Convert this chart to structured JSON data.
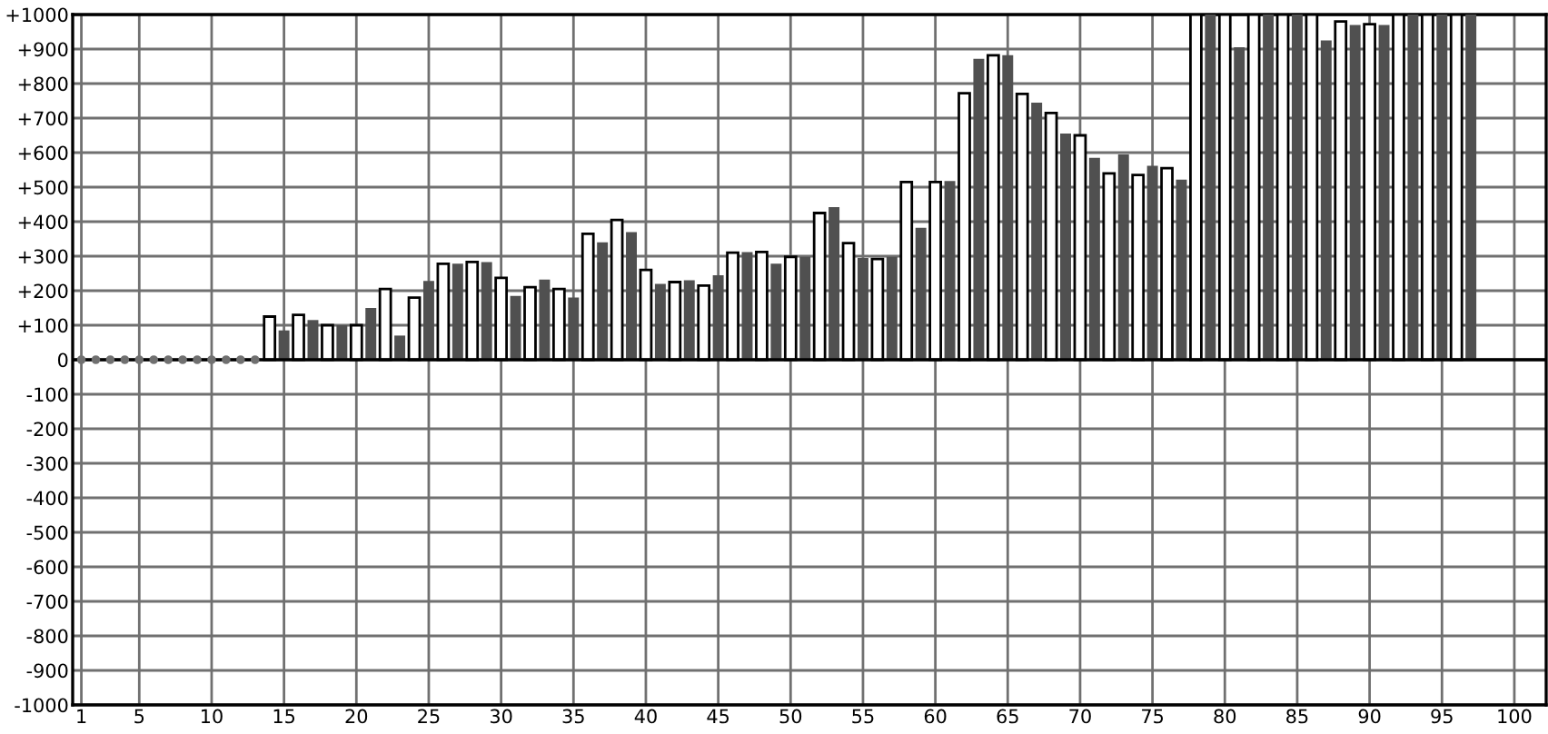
{
  "chart_data": {
    "type": "bar",
    "series": [
      {
        "color": "#ffffff",
        "x": [
          14,
          16,
          18,
          20,
          22,
          24,
          26,
          28,
          30,
          32,
          34,
          36,
          38,
          40,
          42,
          44,
          46,
          48,
          50,
          52,
          54,
          56,
          58,
          60,
          62,
          64,
          66,
          68,
          70,
          72,
          74,
          76,
          78,
          80,
          82,
          84,
          86,
          88,
          90,
          92,
          94,
          96
        ],
        "values": [
          125,
          130,
          100,
          100,
          205,
          180,
          278,
          283,
          237,
          210,
          205,
          365,
          405,
          260,
          225,
          215,
          310,
          312,
          298,
          425,
          338,
          292,
          515,
          515,
          772,
          882,
          770,
          715,
          650,
          540,
          535,
          555,
          1000,
          1000,
          1000,
          1000,
          1000,
          980,
          972,
          1000,
          1000,
          1000
        ]
      },
      {
        "color": "#505050",
        "x": [
          15,
          17,
          19,
          21,
          23,
          25,
          27,
          29,
          31,
          33,
          35,
          37,
          39,
          41,
          43,
          45,
          47,
          49,
          51,
          53,
          55,
          57,
          59,
          61,
          63,
          65,
          67,
          69,
          71,
          73,
          75,
          77,
          79,
          81,
          83,
          85,
          87,
          89,
          91,
          93,
          95,
          97
        ],
        "values": [
          85,
          115,
          100,
          150,
          70,
          228,
          278,
          283,
          185,
          232,
          180,
          340,
          370,
          220,
          230,
          245,
          312,
          278,
          298,
          442,
          295,
          298,
          382,
          518,
          872,
          882,
          745,
          655,
          585,
          595,
          562,
          522,
          1000,
          905,
          1000,
          1000,
          925,
          970,
          970,
          1000,
          1000,
          1000
        ]
      },
      {
        "type": "scatter",
        "color": "#707070",
        "x": [
          1,
          2,
          3,
          4,
          5,
          6,
          7,
          8,
          9,
          10,
          11,
          12,
          13
        ],
        "values": [
          0,
          0,
          0,
          0,
          0,
          0,
          0,
          0,
          0,
          0,
          0,
          0,
          0
        ]
      }
    ],
    "xlim": [
      0.4,
      102.2
    ],
    "xticks": [
      1,
      5,
      10,
      15,
      20,
      25,
      30,
      35,
      40,
      45,
      50,
      55,
      60,
      65,
      70,
      75,
      80,
      85,
      90,
      95,
      100
    ],
    "ylim": [
      -1000,
      1000
    ],
    "yticks": [
      {
        "value": -1000,
        "label": "-1000"
      },
      {
        "value": -900,
        "label": "-900"
      },
      {
        "value": -800,
        "label": "-800"
      },
      {
        "value": -700,
        "label": "-700"
      },
      {
        "value": -600,
        "label": "-600"
      },
      {
        "value": -500,
        "label": "-500"
      },
      {
        "value": -400,
        "label": "-400"
      },
      {
        "value": -300,
        "label": "-300"
      },
      {
        "value": -200,
        "label": "-200"
      },
      {
        "value": -100,
        "label": "-100"
      },
      0,
      {
        "value": 100,
        "label": "+100"
      },
      {
        "value": 200,
        "label": "+200"
      },
      {
        "value": 300,
        "label": "+300"
      },
      {
        "value": 400,
        "label": "+400"
      },
      {
        "value": 500,
        "label": "+500"
      },
      {
        "value": 600,
        "label": "+600"
      },
      {
        "value": 700,
        "label": "+700"
      },
      {
        "value": 800,
        "label": "+800"
      },
      {
        "value": 900,
        "label": "+900"
      },
      {
        "value": 1000,
        "label": "+1000"
      }
    ],
    "grid": true
  }
}
